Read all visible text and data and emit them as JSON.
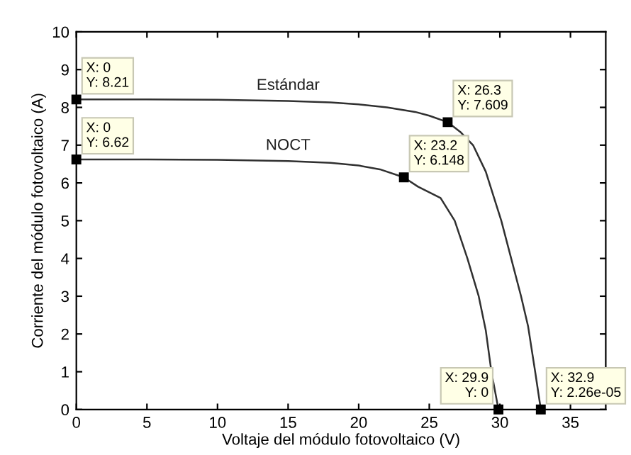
{
  "chart_data": {
    "type": "line",
    "xlabel": "Voltaje del módulo fotovoltaico (V)",
    "ylabel": "Corriente del módulo fotovoltaico (A)",
    "xlim": [
      0,
      37.5
    ],
    "ylim": [
      0,
      10
    ],
    "xticks": [
      0,
      5,
      10,
      15,
      20,
      25,
      30,
      35
    ],
    "yticks": [
      0,
      1,
      2,
      3,
      4,
      5,
      6,
      7,
      8,
      9,
      10
    ],
    "grid": false,
    "legend": false,
    "marker": "none",
    "line_style": "solid",
    "series": [
      {
        "name": "Estándar",
        "color": "#303030",
        "x": [
          0,
          5,
          10,
          15,
          18,
          20,
          22,
          24,
          25,
          26.3,
          27.2,
          28.1,
          29,
          30.1,
          30.8,
          31.5,
          32,
          32.5,
          32.9
        ],
        "values": [
          8.21,
          8.21,
          8.2,
          8.17,
          8.13,
          8.08,
          8.0,
          7.88,
          7.78,
          7.609,
          7.35,
          7,
          6.3,
          5,
          4,
          3,
          2.2,
          1,
          0
        ]
      },
      {
        "name": "NOCT",
        "color": "#303030",
        "x": [
          0,
          5,
          10,
          15,
          18,
          20,
          21.5,
          23.2,
          24.2,
          25.8,
          26.8,
          27.7,
          28.5,
          29,
          29.4,
          29.9
        ],
        "values": [
          6.62,
          6.62,
          6.61,
          6.58,
          6.53,
          6.46,
          6.36,
          6.148,
          5.9,
          5.6,
          5,
          4,
          3,
          2.1,
          1,
          0
        ]
      }
    ],
    "annotations": [
      {
        "text": "X: 0\nY: 8.21",
        "x": 0,
        "y": 8.21
      },
      {
        "text": "X: 26.3\nY: 7.609",
        "x": 26.3,
        "y": 7.609
      },
      {
        "text": "X: 0\nY: 6.62",
        "x": 0,
        "y": 6.62
      },
      {
        "text": "X: 23.2\nY: 6.148",
        "x": 23.2,
        "y": 6.148
      },
      {
        "text": "X: 29.9\nY: 0",
        "x": 29.9,
        "y": 0
      },
      {
        "text": "X: 32.9\nY: 2.26e-05",
        "x": 32.9,
        "y": 2.26e-05
      }
    ]
  }
}
